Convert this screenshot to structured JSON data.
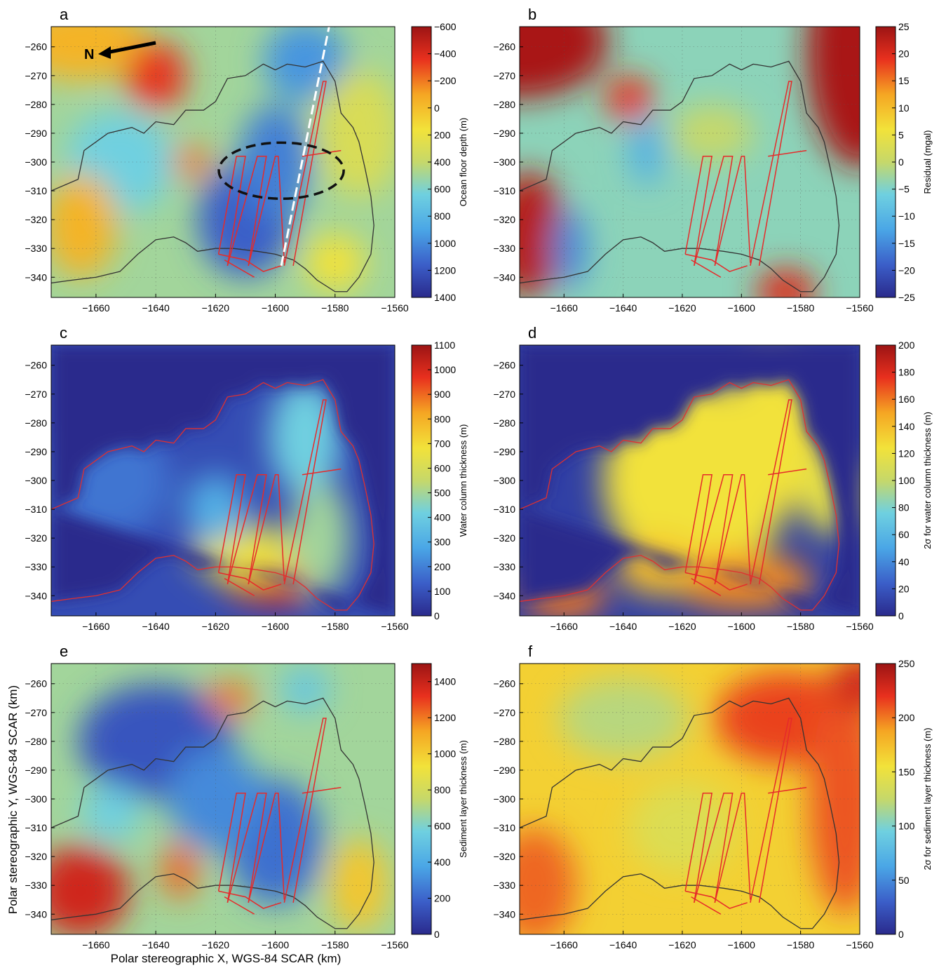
{
  "figure": {
    "xlabel": "Polar stereographic X, WGS-84 SCAR (km)",
    "ylabel": "Polar stereographic Y, WGS-84 SCAR (km)",
    "north_label": "N"
  },
  "chart_data": [
    {
      "type": "heatmap",
      "panel": "a",
      "xlim": [
        -1675,
        -1560
      ],
      "ylim": [
        -347,
        -253
      ],
      "xticks": [
        -1660,
        -1640,
        -1620,
        -1600,
        -1580,
        -1560
      ],
      "yticks": [
        -260,
        -270,
        -280,
        -290,
        -300,
        -310,
        -320,
        -330,
        -340
      ],
      "colorbar": {
        "label": "Ocean floor depth (m)",
        "range": [
          -600,
          1400
        ],
        "reversed": true,
        "ticks": [
          "-600",
          "-400",
          "-200",
          "0",
          "200",
          "400",
          "600",
          "800",
          "1000",
          "1200",
          "1400"
        ]
      },
      "grid": true,
      "outline_color": "#333333",
      "show_north_arrow": true,
      "show_ellipse": true,
      "show_dashed_line": true
    },
    {
      "type": "heatmap",
      "panel": "b",
      "xlim": [
        -1675,
        -1560
      ],
      "ylim": [
        -347,
        -253
      ],
      "xticks": [
        -1660,
        -1640,
        -1620,
        -1600,
        -1580,
        -1560
      ],
      "yticks": [
        -260,
        -270,
        -280,
        -290,
        -300,
        -310,
        -320,
        -330,
        -340
      ],
      "colorbar": {
        "label": "Residual (mgal)",
        "range": [
          -25,
          25
        ],
        "reversed": false,
        "ticks": [
          "25",
          "20",
          "15",
          "10",
          "5",
          "0",
          "-5",
          "-10",
          "-15",
          "-20",
          "-25"
        ]
      },
      "grid": true,
      "outline_color": "#333333"
    },
    {
      "type": "heatmap",
      "panel": "c",
      "xlim": [
        -1675,
        -1560
      ],
      "ylim": [
        -347,
        -253
      ],
      "xticks": [
        -1660,
        -1640,
        -1620,
        -1600,
        -1580,
        -1560
      ],
      "yticks": [
        -260,
        -270,
        -280,
        -290,
        -300,
        -310,
        -320,
        -330,
        -340
      ],
      "colorbar": {
        "label": "Water column thickness (m)",
        "range": [
          0,
          1100
        ],
        "reversed": false,
        "ticks": [
          "1100",
          "1000",
          "900",
          "800",
          "700",
          "600",
          "500",
          "400",
          "300",
          "200",
          "100",
          "0"
        ]
      },
      "grid": false,
      "outline_color": "#e03030"
    },
    {
      "type": "heatmap",
      "panel": "d",
      "xlim": [
        -1675,
        -1560
      ],
      "ylim": [
        -347,
        -253
      ],
      "xticks": [
        -1660,
        -1640,
        -1620,
        -1600,
        -1580,
        -1560
      ],
      "yticks": [
        -260,
        -270,
        -280,
        -290,
        -300,
        -310,
        -320,
        -330,
        -340
      ],
      "colorbar": {
        "label": "2σ for water column thickness (m)",
        "range": [
          0,
          200
        ],
        "reversed": false,
        "ticks": [
          "200",
          "180",
          "160",
          "140",
          "120",
          "100",
          "80",
          "60",
          "40",
          "20",
          "0"
        ]
      },
      "grid": false,
      "outline_color": "#e03030"
    },
    {
      "type": "heatmap",
      "panel": "e",
      "xlim": [
        -1675,
        -1560
      ],
      "ylim": [
        -347,
        -253
      ],
      "xticks": [
        -1660,
        -1640,
        -1620,
        -1600,
        -1580,
        -1560
      ],
      "yticks": [
        -260,
        -270,
        -280,
        -290,
        -300,
        -310,
        -320,
        -330,
        -340
      ],
      "colorbar": {
        "label": "Sediment layer thickness (m)",
        "range": [
          0,
          1500
        ],
        "reversed": false,
        "ticks": [
          "1400",
          "1200",
          "1000",
          "800",
          "600",
          "400",
          "200",
          "0"
        ]
      },
      "grid": true,
      "outline_color": "#333333"
    },
    {
      "type": "heatmap",
      "panel": "f",
      "xlim": [
        -1675,
        -1560
      ],
      "ylim": [
        -347,
        -253
      ],
      "xticks": [
        -1660,
        -1640,
        -1620,
        -1600,
        -1580,
        -1560
      ],
      "yticks": [
        -260,
        -270,
        -280,
        -290,
        -300,
        -310,
        -320,
        -330,
        -340
      ],
      "colorbar": {
        "label": "2σ for sediment layer thickness (m)",
        "range": [
          0,
          250
        ],
        "reversed": false,
        "ticks": [
          "250",
          "200",
          "150",
          "100",
          "50",
          "0"
        ]
      },
      "grid": true,
      "outline_color": "#333333"
    }
  ]
}
